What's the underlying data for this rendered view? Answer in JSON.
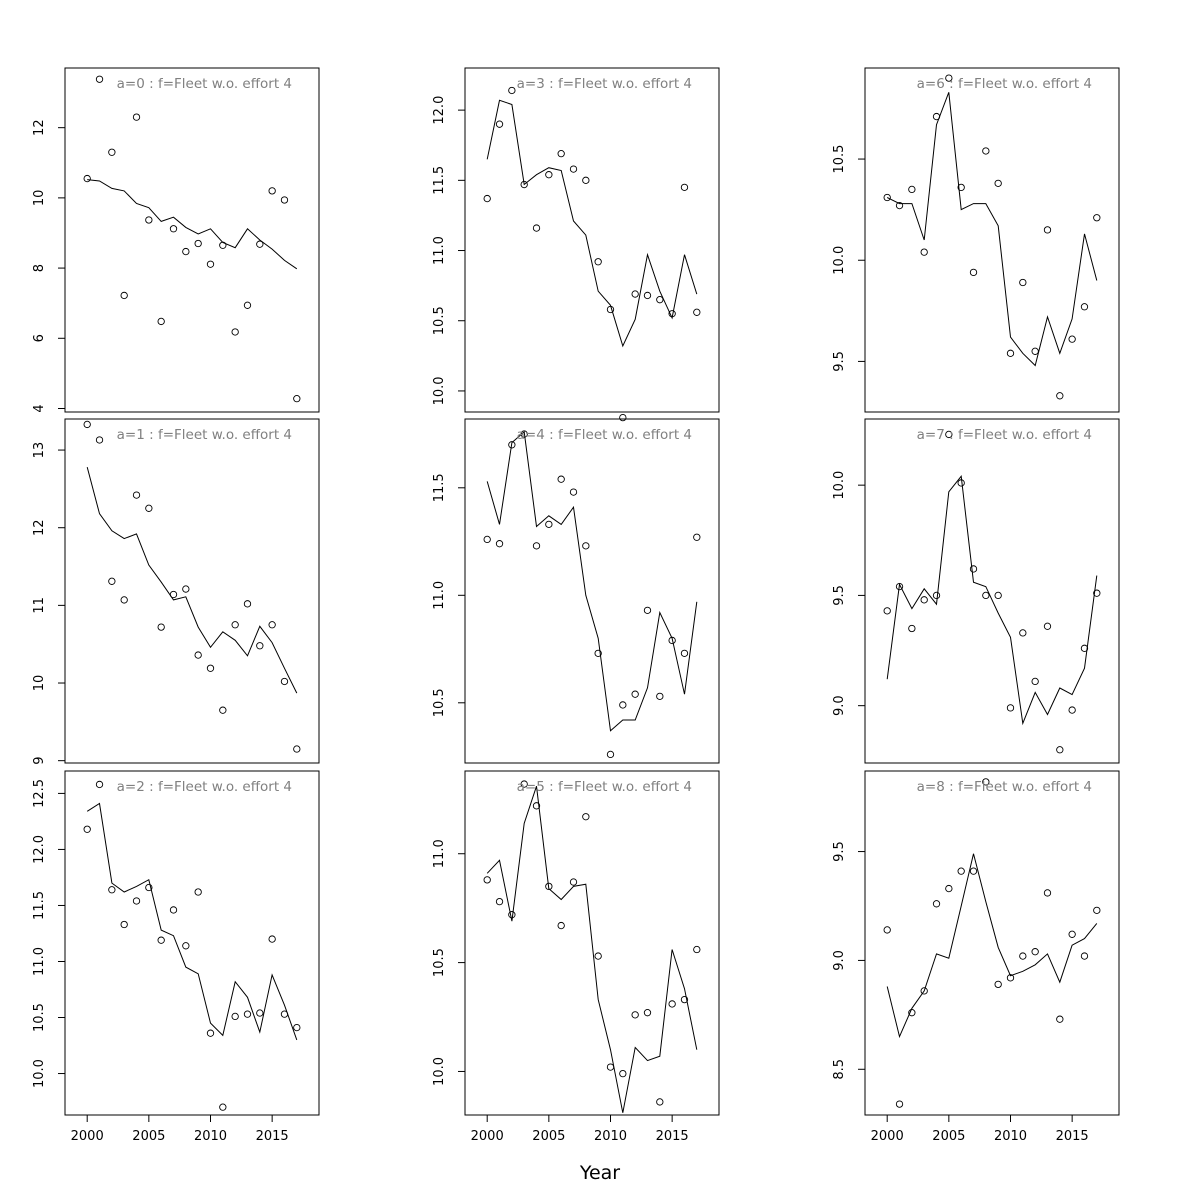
{
  "figure": {
    "xlabel": "Year"
  },
  "chart_data": [
    {
      "type": "scatter",
      "title": "a=0  :  f=Fleet w.o. effort 4",
      "xlim": [
        1998.2,
        2018.8
      ],
      "ylim": [
        3.9,
        13.7
      ],
      "yticks": [
        "4",
        "6",
        "8",
        "10",
        "12"
      ],
      "ytick_values": [
        4,
        6,
        8,
        10,
        12
      ],
      "xticks": [],
      "xtick_values": [],
      "x": [
        2000,
        2001,
        2002,
        2003,
        2004,
        2005,
        2006,
        2007,
        2008,
        2009,
        2010,
        2011,
        2012,
        2013,
        2014,
        2015,
        2016,
        2017
      ],
      "series": [
        {
          "name": "",
          "style": "points",
          "values": [
            10.55,
            13.38,
            11.3,
            7.22,
            12.3,
            9.37,
            6.48,
            9.12,
            8.47,
            8.7,
            8.11,
            8.65,
            6.18,
            6.94,
            8.68,
            10.2,
            9.94,
            4.28
          ]
        },
        {
          "name": "",
          "style": "line",
          "values": [
            10.52,
            10.48,
            10.27,
            10.2,
            9.84,
            9.72,
            9.33,
            9.45,
            9.16,
            8.97,
            9.12,
            8.73,
            8.58,
            9.12,
            8.8,
            8.54,
            8.22,
            7.98
          ]
        }
      ]
    },
    {
      "type": "scatter",
      "title": "a=3  :  f=Fleet w.o. effort 4",
      "xlim": [
        1998.2,
        2018.8
      ],
      "ylim": [
        9.85,
        12.3
      ],
      "yticks": [
        "10.0",
        "10.5",
        "11.0",
        "11.5",
        "12.0"
      ],
      "ytick_values": [
        10.0,
        10.5,
        11.0,
        11.5,
        12.0
      ],
      "xticks": [],
      "xtick_values": [],
      "x": [
        2000,
        2001,
        2002,
        2003,
        2004,
        2005,
        2006,
        2007,
        2008,
        2009,
        2010,
        2011,
        2012,
        2013,
        2014,
        2015,
        2016,
        2017
      ],
      "series": [
        {
          "name": "",
          "style": "points",
          "values": [
            11.37,
            11.9,
            12.14,
            11.47,
            11.16,
            11.54,
            11.69,
            11.58,
            11.5,
            10.92,
            10.58,
            9.81,
            10.69,
            10.68,
            10.65,
            10.55,
            11.45,
            10.56
          ]
        },
        {
          "name": "",
          "style": "line",
          "values": [
            11.65,
            12.07,
            12.04,
            11.47,
            11.54,
            11.59,
            11.57,
            11.21,
            11.11,
            10.71,
            10.61,
            10.32,
            10.51,
            10.97,
            10.71,
            10.52,
            10.97,
            10.69
          ]
        }
      ]
    },
    {
      "type": "scatter",
      "title": "a=6  :  f=Fleet w.o. effort 4",
      "xlim": [
        1998.2,
        2018.8
      ],
      "ylim": [
        9.25,
        10.95
      ],
      "yticks": [
        "9.5",
        "10.0",
        "10.5"
      ],
      "ytick_values": [
        9.5,
        10.0,
        10.5
      ],
      "xticks": [],
      "xtick_values": [],
      "x": [
        2000,
        2001,
        2002,
        2003,
        2004,
        2005,
        2006,
        2007,
        2008,
        2009,
        2010,
        2011,
        2012,
        2013,
        2014,
        2015,
        2016,
        2017
      ],
      "series": [
        {
          "name": "",
          "style": "points",
          "values": [
            10.31,
            10.27,
            10.35,
            10.04,
            10.71,
            10.9,
            10.36,
            9.94,
            10.54,
            10.38,
            9.54,
            9.89,
            9.55,
            10.15,
            9.33,
            9.61,
            9.77,
            10.21
          ]
        },
        {
          "name": "",
          "style": "line",
          "values": [
            10.31,
            10.28,
            10.28,
            10.1,
            10.67,
            10.83,
            10.25,
            10.28,
            10.28,
            10.17,
            9.62,
            9.54,
            9.48,
            9.72,
            9.54,
            9.71,
            10.13,
            9.9
          ]
        }
      ]
    },
    {
      "type": "scatter",
      "title": "a=1  :  f=Fleet w.o. effort 4",
      "xlim": [
        1998.2,
        2018.8
      ],
      "ylim": [
        8.97,
        13.4
      ],
      "yticks": [
        "9",
        "10",
        "11",
        "12",
        "13"
      ],
      "ytick_values": [
        9,
        10,
        11,
        12,
        13
      ],
      "xticks": [],
      "xtick_values": [],
      "x": [
        2000,
        2001,
        2002,
        2003,
        2004,
        2005,
        2006,
        2007,
        2008,
        2009,
        2010,
        2011,
        2012,
        2013,
        2014,
        2015,
        2016,
        2017
      ],
      "series": [
        {
          "name": "",
          "style": "points",
          "values": [
            13.33,
            13.13,
            11.31,
            11.07,
            12.42,
            12.25,
            10.72,
            11.14,
            11.21,
            10.36,
            10.19,
            9.65,
            10.75,
            11.02,
            10.48,
            10.75,
            10.02,
            9.15
          ]
        },
        {
          "name": "",
          "style": "line",
          "values": [
            12.78,
            12.18,
            11.96,
            11.86,
            11.92,
            11.52,
            11.3,
            11.07,
            11.11,
            10.72,
            10.46,
            10.66,
            10.55,
            10.35,
            10.73,
            10.52,
            10.19,
            9.87
          ]
        }
      ]
    },
    {
      "type": "scatter",
      "title": "a=4  :  f=Fleet w.o. effort 4",
      "xlim": [
        1998.2,
        2018.8
      ],
      "ylim": [
        10.22,
        11.82
      ],
      "yticks": [
        "10.5",
        "11.0",
        "11.5"
      ],
      "ytick_values": [
        10.5,
        11.0,
        11.5
      ],
      "xticks": [],
      "xtick_values": [],
      "x": [
        2000,
        2001,
        2002,
        2003,
        2004,
        2005,
        2006,
        2007,
        2008,
        2009,
        2010,
        2011,
        2012,
        2013,
        2014,
        2015,
        2016,
        2017
      ],
      "series": [
        {
          "name": "",
          "style": "points",
          "values": [
            11.26,
            11.24,
            11.7,
            11.75,
            11.23,
            11.33,
            11.54,
            11.48,
            11.23,
            10.73,
            10.26,
            10.49,
            10.54,
            10.93,
            10.53,
            10.79,
            10.73,
            11.27
          ]
        },
        {
          "name": "",
          "style": "line",
          "values": [
            11.53,
            11.33,
            11.71,
            11.76,
            11.32,
            11.37,
            11.33,
            11.41,
            11.0,
            10.8,
            10.37,
            10.42,
            10.42,
            10.57,
            10.92,
            10.8,
            10.54,
            10.97
          ]
        }
      ]
    },
    {
      "type": "scatter",
      "title": "a=7  :  f=Fleet w.o. effort 4",
      "xlim": [
        1998.2,
        2018.8
      ],
      "ylim": [
        8.74,
        10.3
      ],
      "yticks": [
        "9.0",
        "9.5",
        "10.0"
      ],
      "ytick_values": [
        9.0,
        9.5,
        10.0
      ],
      "xticks": [],
      "xtick_values": [],
      "x": [
        2000,
        2001,
        2002,
        2003,
        2004,
        2005,
        2006,
        2007,
        2008,
        2009,
        2010,
        2011,
        2012,
        2013,
        2014,
        2015,
        2016,
        2017
      ],
      "series": [
        {
          "name": "",
          "style": "points",
          "values": [
            9.43,
            9.54,
            9.35,
            9.48,
            9.5,
            10.23,
            10.01,
            9.62,
            9.5,
            9.5,
            8.99,
            9.33,
            9.11,
            9.36,
            8.8,
            8.98,
            9.26,
            9.51
          ]
        },
        {
          "name": "",
          "style": "line",
          "values": [
            9.12,
            9.55,
            9.44,
            9.53,
            9.46,
            9.97,
            10.04,
            9.56,
            9.54,
            9.42,
            9.31,
            8.92,
            9.06,
            8.96,
            9.08,
            9.05,
            9.17,
            9.59
          ]
        }
      ]
    },
    {
      "type": "scatter",
      "title": "a=2  :  f=Fleet w.o. effort 4",
      "xlim": [
        1998.2,
        2018.8
      ],
      "ylim": [
        9.63,
        12.7
      ],
      "yticks": [
        "10.0",
        "10.5",
        "11.0",
        "11.5",
        "12.0",
        "12.5"
      ],
      "ytick_values": [
        10.0,
        10.5,
        11.0,
        11.5,
        12.0,
        12.5
      ],
      "xticks": [
        "2000",
        "2005",
        "2010",
        "2015"
      ],
      "xtick_values": [
        2000,
        2005,
        2010,
        2015
      ],
      "x": [
        2000,
        2001,
        2002,
        2003,
        2004,
        2005,
        2006,
        2007,
        2008,
        2009,
        2010,
        2011,
        2012,
        2013,
        2014,
        2015,
        2016,
        2017
      ],
      "series": [
        {
          "name": "",
          "style": "points",
          "values": [
            12.18,
            12.58,
            11.64,
            11.33,
            11.54,
            11.66,
            11.19,
            11.46,
            11.14,
            11.62,
            10.36,
            9.7,
            10.51,
            10.53,
            10.54,
            11.2,
            10.53,
            10.41
          ]
        },
        {
          "name": "",
          "style": "line",
          "values": [
            12.34,
            12.41,
            11.7,
            11.62,
            11.67,
            11.73,
            11.28,
            11.23,
            10.95,
            10.89,
            10.45,
            10.34,
            10.82,
            10.68,
            10.37,
            10.88,
            10.61,
            10.3
          ]
        }
      ]
    },
    {
      "type": "scatter",
      "title": "a=5  :  f=Fleet w.o. effort 4",
      "xlim": [
        1998.2,
        2018.8
      ],
      "ylim": [
        9.8,
        11.38
      ],
      "yticks": [
        "10.0",
        "10.5",
        "11.0"
      ],
      "ytick_values": [
        10.0,
        10.5,
        11.0
      ],
      "xticks": [
        "2000",
        "2005",
        "2010",
        "2015"
      ],
      "xtick_values": [
        2000,
        2005,
        2010,
        2015
      ],
      "x": [
        2000,
        2001,
        2002,
        2003,
        2004,
        2005,
        2006,
        2007,
        2008,
        2009,
        2010,
        2011,
        2012,
        2013,
        2014,
        2015,
        2016,
        2017
      ],
      "series": [
        {
          "name": "",
          "style": "points",
          "values": [
            10.88,
            10.78,
            10.72,
            11.32,
            11.22,
            10.85,
            10.67,
            10.87,
            11.17,
            10.53,
            10.02,
            9.99,
            10.26,
            10.27,
            9.86,
            10.31,
            10.33,
            10.56
          ]
        },
        {
          "name": "",
          "style": "line",
          "values": [
            10.91,
            10.97,
            10.69,
            11.14,
            11.31,
            10.84,
            10.79,
            10.85,
            10.86,
            10.33,
            10.1,
            9.81,
            10.11,
            10.05,
            10.07,
            10.56,
            10.38,
            10.1
          ]
        }
      ]
    },
    {
      "type": "scatter",
      "title": "a=8  :  f=Fleet w.o. effort 4",
      "xlim": [
        1998.2,
        2018.8
      ],
      "ylim": [
        8.29,
        9.87
      ],
      "yticks": [
        "8.5",
        "9.0",
        "9.5"
      ],
      "ytick_values": [
        8.5,
        9.0,
        9.5
      ],
      "xticks": [
        "2000",
        "2005",
        "2010",
        "2015"
      ],
      "xtick_values": [
        2000,
        2005,
        2010,
        2015
      ],
      "x": [
        2000,
        2001,
        2002,
        2003,
        2004,
        2005,
        2006,
        2007,
        2008,
        2009,
        2010,
        2011,
        2012,
        2013,
        2014,
        2015,
        2016,
        2017
      ],
      "series": [
        {
          "name": "",
          "style": "points",
          "values": [
            9.14,
            8.34,
            8.76,
            8.86,
            9.26,
            9.33,
            9.41,
            9.41,
            9.82,
            8.89,
            8.92,
            9.02,
            9.04,
            9.31,
            8.73,
            9.12,
            9.02,
            9.23
          ]
        },
        {
          "name": "",
          "style": "line",
          "values": [
            8.88,
            8.65,
            8.78,
            8.86,
            9.03,
            9.01,
            9.25,
            9.49,
            9.27,
            9.06,
            8.93,
            8.95,
            8.98,
            9.03,
            8.9,
            9.07,
            9.1,
            9.17
          ]
        }
      ]
    }
  ]
}
